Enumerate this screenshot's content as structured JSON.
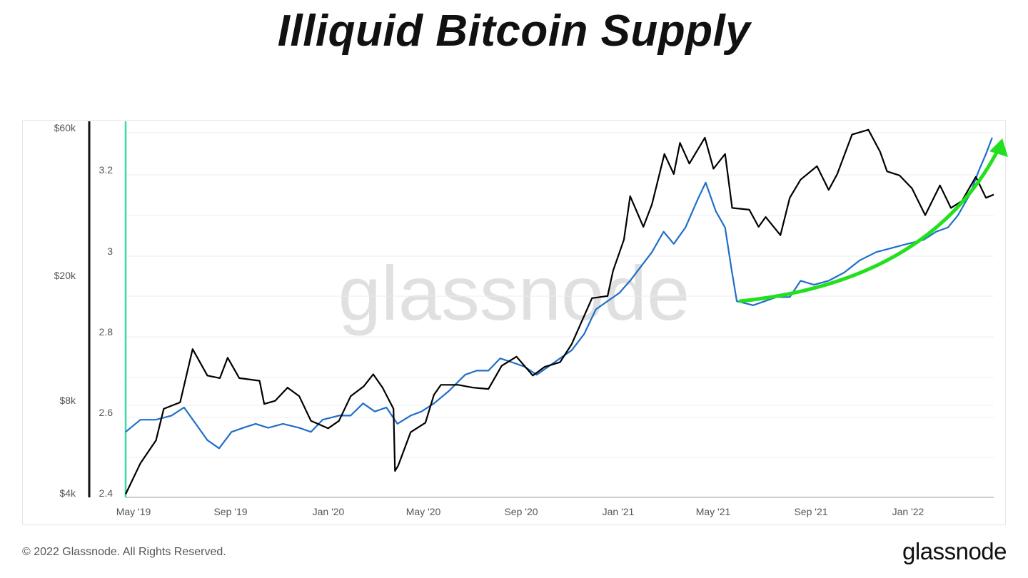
{
  "title": "Illiquid Bitcoin Supply",
  "footer": {
    "copyright": "© 2022 Glassnode. All Rights Reserved.",
    "logo": "glassnode"
  },
  "watermark": "glassnode",
  "colors": {
    "price": "#000000",
    "supply": "#1f6fc8",
    "arrow": "#22e01e",
    "marker": "#3cd8a8",
    "grid": "#ececec"
  },
  "chart_data": {
    "type": "line",
    "x_ticks": [
      "May '19",
      "Sep '19",
      "Jan '20",
      "May '20",
      "Sep '20",
      "Jan '21",
      "May '21",
      "Sep '21",
      "Jan '22"
    ],
    "y_left_ticks": [
      "$60k",
      "$20k",
      "$8k",
      "$4k"
    ],
    "y_right_ticks": [
      "3.2",
      "3",
      "2.8",
      "2.6",
      "2.4"
    ],
    "price_axis": {
      "scale": "log",
      "range": [
        4000,
        72000
      ]
    },
    "supply_axis": {
      "range": [
        2.4,
        3.32
      ]
    },
    "grid": true,
    "series": [
      {
        "key": "price",
        "points": [
          [
            "2019-04-01",
            4100
          ],
          [
            "2019-04-20",
            5200
          ],
          [
            "2019-05-10",
            6200
          ],
          [
            "2019-05-20",
            7900
          ],
          [
            "2019-06-10",
            8300
          ],
          [
            "2019-06-26",
            12500
          ],
          [
            "2019-07-15",
            10200
          ],
          [
            "2019-07-31",
            10000
          ],
          [
            "2019-08-10",
            11700
          ],
          [
            "2019-08-25",
            10000
          ],
          [
            "2019-09-20",
            9800
          ],
          [
            "2019-09-26",
            8200
          ],
          [
            "2019-10-10",
            8400
          ],
          [
            "2019-10-26",
            9300
          ],
          [
            "2019-11-10",
            8700
          ],
          [
            "2019-11-25",
            7200
          ],
          [
            "2019-12-17",
            6800
          ],
          [
            "2019-12-31",
            7200
          ],
          [
            "2020-01-15",
            8700
          ],
          [
            "2020-02-01",
            9400
          ],
          [
            "2020-02-13",
            10300
          ],
          [
            "2020-02-25",
            9300
          ],
          [
            "2020-03-10",
            7900
          ],
          [
            "2020-03-12",
            4900
          ],
          [
            "2020-03-16",
            5100
          ],
          [
            "2020-04-01",
            6600
          ],
          [
            "2020-04-20",
            7100
          ],
          [
            "2020-05-01",
            8800
          ],
          [
            "2020-05-10",
            9500
          ],
          [
            "2020-06-01",
            9500
          ],
          [
            "2020-06-20",
            9300
          ],
          [
            "2020-07-10",
            9200
          ],
          [
            "2020-07-27",
            11000
          ],
          [
            "2020-08-15",
            11800
          ],
          [
            "2020-09-05",
            10200
          ],
          [
            "2020-09-20",
            10900
          ],
          [
            "2020-10-10",
            11300
          ],
          [
            "2020-10-25",
            13000
          ],
          [
            "2020-11-20",
            18500
          ],
          [
            "2020-12-10",
            18800
          ],
          [
            "2020-12-17",
            22800
          ],
          [
            "2020-12-31",
            29000
          ],
          [
            "2021-01-08",
            40500
          ],
          [
            "2021-01-25",
            32000
          ],
          [
            "2021-02-05",
            38000
          ],
          [
            "2021-02-21",
            56000
          ],
          [
            "2021-03-05",
            48000
          ],
          [
            "2021-03-13",
            61000
          ],
          [
            "2021-03-25",
            52000
          ],
          [
            "2021-04-14",
            63500
          ],
          [
            "2021-04-25",
            50000
          ],
          [
            "2021-05-10",
            56000
          ],
          [
            "2021-05-19",
            37000
          ],
          [
            "2021-06-10",
            36500
          ],
          [
            "2021-06-22",
            32000
          ],
          [
            "2021-07-01",
            34500
          ],
          [
            "2021-07-20",
            30000
          ],
          [
            "2021-08-01",
            40000
          ],
          [
            "2021-08-15",
            46000
          ],
          [
            "2021-09-05",
            51000
          ],
          [
            "2021-09-20",
            42500
          ],
          [
            "2021-10-01",
            48000
          ],
          [
            "2021-10-20",
            65000
          ],
          [
            "2021-11-10",
            67500
          ],
          [
            "2021-11-25",
            57000
          ],
          [
            "2021-12-04",
            49000
          ],
          [
            "2021-12-20",
            47500
          ],
          [
            "2022-01-05",
            43000
          ],
          [
            "2022-01-22",
            35000
          ],
          [
            "2022-02-10",
            44000
          ],
          [
            "2022-02-24",
            37000
          ],
          [
            "2022-03-10",
            39000
          ],
          [
            "2022-03-28",
            47000
          ],
          [
            "2022-04-10",
            40000
          ],
          [
            "2022-04-20",
            41000
          ]
        ]
      },
      {
        "key": "supply",
        "points": [
          [
            "2019-04-01",
            2.56
          ],
          [
            "2019-04-20",
            2.59
          ],
          [
            "2019-05-10",
            2.59
          ],
          [
            "2019-05-30",
            2.6
          ],
          [
            "2019-06-15",
            2.62
          ],
          [
            "2019-06-30",
            2.58
          ],
          [
            "2019-07-15",
            2.54
          ],
          [
            "2019-07-30",
            2.52
          ],
          [
            "2019-08-15",
            2.56
          ],
          [
            "2019-08-30",
            2.57
          ],
          [
            "2019-09-15",
            2.58
          ],
          [
            "2019-10-01",
            2.57
          ],
          [
            "2019-10-20",
            2.58
          ],
          [
            "2019-11-10",
            2.57
          ],
          [
            "2019-11-25",
            2.56
          ],
          [
            "2019-12-10",
            2.59
          ],
          [
            "2019-12-31",
            2.6
          ],
          [
            "2020-01-15",
            2.6
          ],
          [
            "2020-01-31",
            2.63
          ],
          [
            "2020-02-15",
            2.61
          ],
          [
            "2020-03-01",
            2.62
          ],
          [
            "2020-03-15",
            2.58
          ],
          [
            "2020-04-01",
            2.6
          ],
          [
            "2020-04-15",
            2.61
          ],
          [
            "2020-05-01",
            2.63
          ],
          [
            "2020-05-20",
            2.66
          ],
          [
            "2020-06-10",
            2.7
          ],
          [
            "2020-06-25",
            2.71
          ],
          [
            "2020-07-10",
            2.71
          ],
          [
            "2020-07-25",
            2.74
          ],
          [
            "2020-08-10",
            2.73
          ],
          [
            "2020-08-25",
            2.72
          ],
          [
            "2020-09-10",
            2.7
          ],
          [
            "2020-09-25",
            2.72
          ],
          [
            "2020-10-10",
            2.74
          ],
          [
            "2020-10-25",
            2.76
          ],
          [
            "2020-11-10",
            2.8
          ],
          [
            "2020-11-25",
            2.86
          ],
          [
            "2020-12-10",
            2.88
          ],
          [
            "2020-12-25",
            2.9
          ],
          [
            "2021-01-08",
            2.93
          ],
          [
            "2021-01-20",
            2.96
          ],
          [
            "2021-02-05",
            3.0
          ],
          [
            "2021-02-20",
            3.05
          ],
          [
            "2021-03-05",
            3.02
          ],
          [
            "2021-03-20",
            3.06
          ],
          [
            "2021-04-05",
            3.13
          ],
          [
            "2021-04-15",
            3.17
          ],
          [
            "2021-04-28",
            3.1
          ],
          [
            "2021-05-10",
            3.06
          ],
          [
            "2021-05-18",
            2.96
          ],
          [
            "2021-05-25",
            2.88
          ],
          [
            "2021-06-15",
            2.87
          ],
          [
            "2021-07-15",
            2.89
          ],
          [
            "2021-08-01",
            2.89
          ],
          [
            "2021-08-15",
            2.93
          ],
          [
            "2021-09-01",
            2.92
          ],
          [
            "2021-09-20",
            2.93
          ],
          [
            "2021-10-10",
            2.95
          ],
          [
            "2021-10-30",
            2.98
          ],
          [
            "2021-11-20",
            3.0
          ],
          [
            "2021-12-10",
            3.01
          ],
          [
            "2021-12-30",
            3.02
          ],
          [
            "2022-01-20",
            3.03
          ],
          [
            "2022-02-05",
            3.05
          ],
          [
            "2022-02-20",
            3.06
          ],
          [
            "2022-03-05",
            3.09
          ],
          [
            "2022-03-20",
            3.14
          ],
          [
            "2022-04-01",
            3.2
          ],
          [
            "2022-04-10",
            3.24
          ],
          [
            "2022-04-18",
            3.28
          ]
        ]
      }
    ]
  }
}
